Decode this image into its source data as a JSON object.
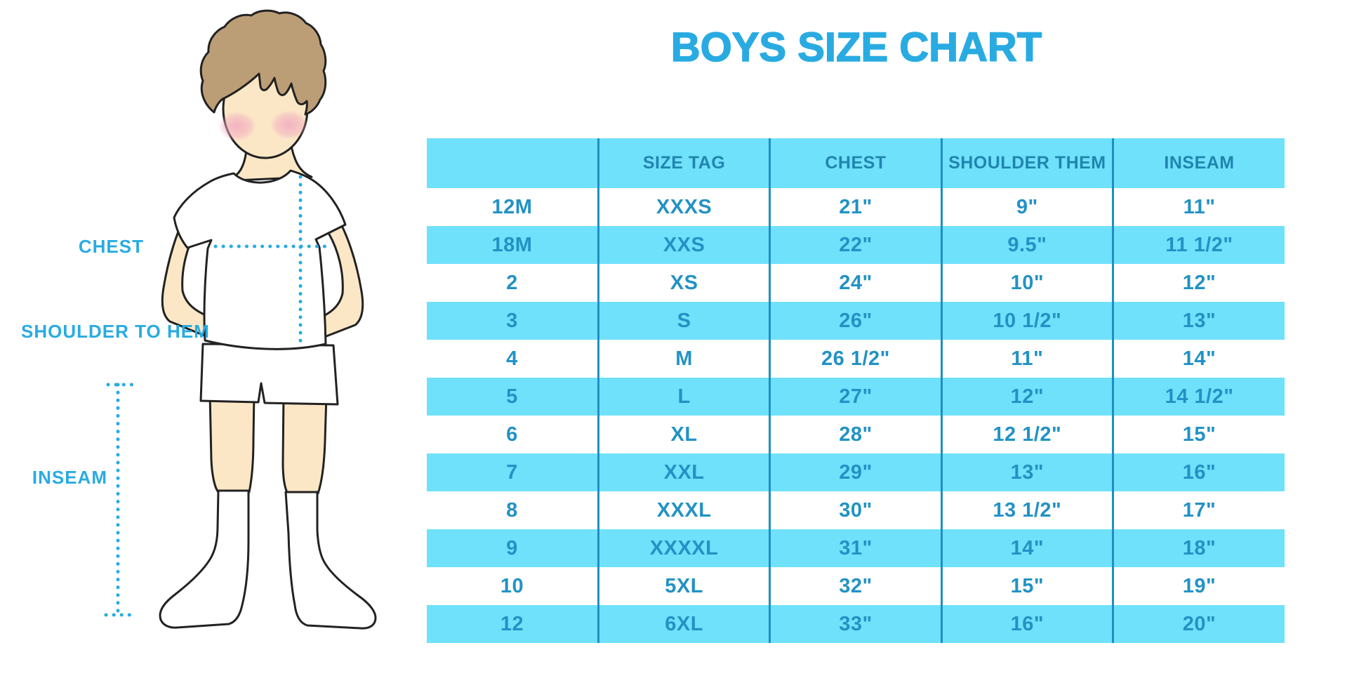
{
  "title": "BOYS SIZE CHART",
  "diagram": {
    "labels": {
      "chest": "CHEST",
      "shoulder_to_hem": "SHOULDER TO HEM",
      "inseam": "INSEAM"
    }
  },
  "chart_data": {
    "type": "table",
    "title": "BOYS SIZE CHART",
    "columns": [
      "",
      "SIZE TAG",
      "CHEST",
      "SHOULDER THEM",
      "INSEAM"
    ],
    "rows": [
      [
        "12M",
        "XXXS",
        "21\"",
        "9\"",
        "11\""
      ],
      [
        "18M",
        "XXS",
        "22\"",
        "9.5\"",
        "11 1/2\""
      ],
      [
        "2",
        "XS",
        "24\"",
        "10\"",
        "12\""
      ],
      [
        "3",
        "S",
        "26\"",
        "10 1/2\"",
        "13\""
      ],
      [
        "4",
        "M",
        "26 1/2\"",
        "11\"",
        "14\""
      ],
      [
        "5",
        "L",
        "27\"",
        "12\"",
        "14 1/2\""
      ],
      [
        "6",
        "XL",
        "28\"",
        "12 1/2\"",
        "15\""
      ],
      [
        "7",
        "XXL",
        "29\"",
        "13\"",
        "16\""
      ],
      [
        "8",
        "XXXL",
        "30\"",
        "13 1/2\"",
        "17\""
      ],
      [
        "9",
        "XXXXL",
        "31\"",
        "14\"",
        "18\""
      ],
      [
        "10",
        "5XL",
        "32\"",
        "15\"",
        "19\""
      ],
      [
        "12",
        "6XL",
        "33\"",
        "16\"",
        "20\""
      ]
    ]
  },
  "colors": {
    "accent": "#29ABE2",
    "band": "#70E1FA",
    "divider": "#1E8FC4",
    "cellText": "#2292C5",
    "headerText": "#1F85B0",
    "outline": "#222222",
    "skin": "#FBE7C6",
    "hair": "#BC9E76",
    "blush": "#F2A9C0"
  }
}
